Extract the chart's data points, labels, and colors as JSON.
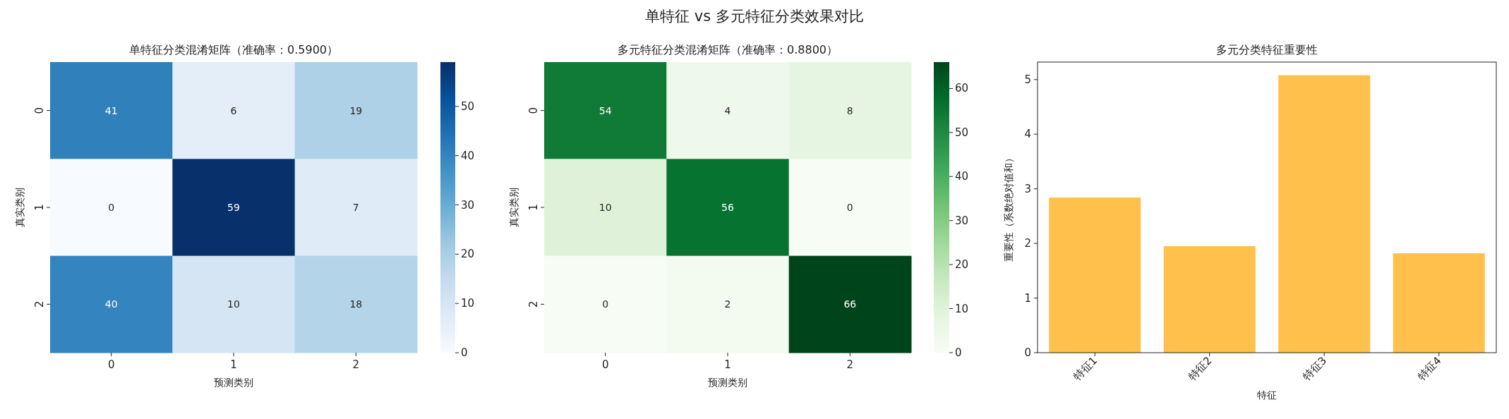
{
  "chart_data": [
    {
      "type": "heatmap",
      "title": "单特征分类混淆矩阵（准确率：0.5900）",
      "xlabel": "预测类别",
      "ylabel": "真实类别",
      "categories": [
        "0",
        "1",
        "2"
      ],
      "y_categories": [
        "0",
        "1",
        "2"
      ],
      "cells": [
        [
          41,
          6,
          19
        ],
        [
          0,
          59,
          7
        ],
        [
          40,
          10,
          18
        ]
      ],
      "clim": [
        0,
        59
      ],
      "cticks": [
        0,
        10,
        20,
        30,
        40,
        50
      ],
      "data_labels": true,
      "colors": [
        "#f7fbff",
        "#deebf7",
        "#c6dbef",
        "#9ecae1",
        "#6baed6",
        "#4292c6",
        "#2171b5",
        "#08519c",
        "#08306b"
      ]
    },
    {
      "type": "heatmap",
      "title": "多元特征分类混淆矩阵（准确率：0.8800）",
      "xlabel": "预测类别",
      "ylabel": "真实类别",
      "categories": [
        "0",
        "1",
        "2"
      ],
      "y_categories": [
        "0",
        "1",
        "2"
      ],
      "cells": [
        [
          54,
          4,
          8
        ],
        [
          10,
          56,
          0
        ],
        [
          0,
          2,
          66
        ]
      ],
      "clim": [
        0,
        66
      ],
      "cticks": [
        0,
        10,
        20,
        30,
        40,
        50,
        60
      ],
      "data_labels": true,
      "colors": [
        "#f7fcf5",
        "#e5f5e0",
        "#c7e9c0",
        "#a1d99b",
        "#74c476",
        "#41ab5d",
        "#238b45",
        "#006d2c",
        "#00441b"
      ]
    },
    {
      "type": "bar",
      "title": "多元分类特征重要性",
      "xlabel": "特征",
      "ylabel": "重要性（系数绝对值和）",
      "categories": [
        "特征1",
        "特征2",
        "特征3",
        "特征4"
      ],
      "values": [
        2.84,
        1.95,
        5.08,
        1.82
      ],
      "color": "#ffc04c",
      "ylim": [
        0,
        5.32
      ],
      "yticks": [
        0,
        1,
        2,
        3,
        4,
        5
      ]
    },
    {
      "type": "other",
      "title": "单特征 vs 多元特征分类效果对比"
    }
  ]
}
